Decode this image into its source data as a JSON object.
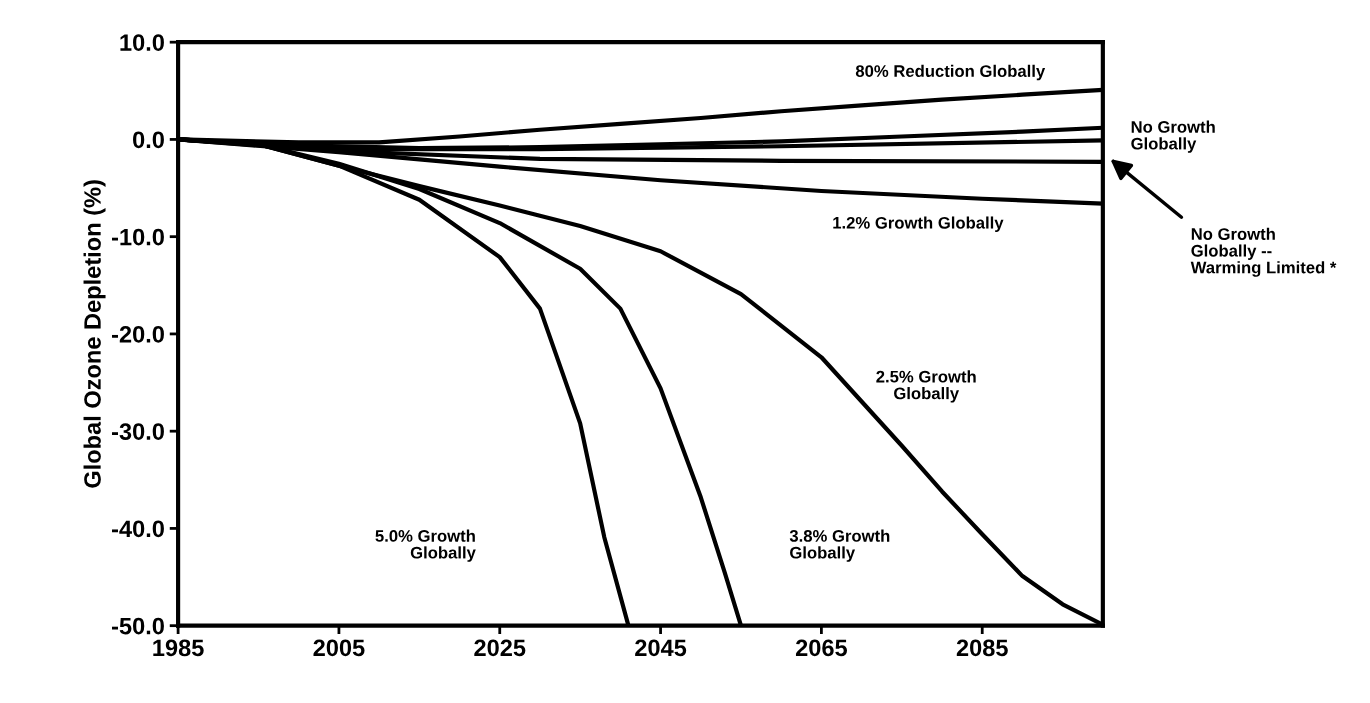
{
  "chart_data": {
    "type": "line",
    "ylabel": "Global Ozone Depletion (%)",
    "xlim": [
      1985,
      2100
    ],
    "xticks": [
      1985,
      2005,
      2025,
      2045,
      2065,
      2085
    ],
    "ylim": [
      -50,
      10
    ],
    "yticks": [
      {
        "value": 10,
        "label": "10.0"
      },
      {
        "value": 0,
        "label": "0.0"
      },
      {
        "value": -10,
        "label": "-10.0"
      },
      {
        "value": -20,
        "label": "-20.0"
      },
      {
        "value": -30,
        "label": "-30.0"
      },
      {
        "value": -40,
        "label": "-40.0"
      },
      {
        "value": -50,
        "label": "-50.0"
      }
    ],
    "grid": false,
    "legend": false,
    "marker": "none",
    "line_style": "solid",
    "series": [
      {
        "color": "#000000",
        "x": [
          1985,
          2000,
          2010,
          2020,
          2030,
          2040,
          2050,
          2060,
          2070,
          2080,
          2090,
          2100
        ],
        "values": [
          0,
          -0.3,
          -0.3,
          0.3,
          1.0,
          1.6,
          2.2,
          2.9,
          3.5,
          4.1,
          4.6,
          5.1
        ]
      },
      {
        "color": "#000000",
        "x": [
          1985,
          2000,
          2015,
          2030,
          2045,
          2060,
          2075,
          2090,
          2100
        ],
        "values": [
          0,
          -0.6,
          -0.9,
          -0.8,
          -0.5,
          -0.2,
          0.3,
          0.8,
          1.2
        ]
      },
      {
        "color": "#000000",
        "x": [
          1985,
          2005,
          2030,
          2060,
          2100
        ],
        "values": [
          0,
          -1.0,
          -1.0,
          -0.7,
          -0.1
        ]
      },
      {
        "color": "#000000",
        "x": [
          1985,
          2005,
          2030,
          2060,
          2100
        ],
        "values": [
          0,
          -1.2,
          -2.0,
          -2.2,
          -2.3
        ]
      },
      {
        "color": "#000000",
        "x": [
          1985,
          2005,
          2025,
          2045,
          2065,
          2085,
          2100
        ],
        "values": [
          0,
          -1.3,
          -2.8,
          -4.2,
          -5.3,
          -6.1,
          -6.6
        ]
      },
      {
        "color": "#000000",
        "x": [
          1985,
          1995,
          2005,
          2015,
          2025,
          2035,
          2045,
          2055,
          2065,
          2075,
          2080,
          2085,
          2090,
          2095,
          2100
        ],
        "values": [
          0,
          -0.5,
          -2.7,
          -4.8,
          -6.8,
          -8.9,
          -11.5,
          -15.9,
          -22.4,
          -31.5,
          -36.2,
          -40.6,
          -44.9,
          -47.8,
          -49.9
        ]
      },
      {
        "color": "#000000",
        "x": [
          1985,
          1995,
          2005,
          2015,
          2025,
          2035,
          2040,
          2045,
          2050,
          2053,
          2055
        ],
        "values": [
          0,
          -0.5,
          -2.5,
          -5.1,
          -8.6,
          -13.3,
          -17.4,
          -25.6,
          -36.8,
          -44.6,
          -50
        ]
      },
      {
        "color": "#000000",
        "x": [
          1985,
          1995,
          2005,
          2015,
          2025,
          2030,
          2035,
          2038,
          2041
        ],
        "values": [
          0,
          -0.5,
          -2.7,
          -6.2,
          -12.1,
          -17.4,
          -29.2,
          -40.9,
          -50
        ]
      }
    ],
    "annotations": [
      "80% Reduction Globally",
      "No Growth\nGlobally",
      "1.2% Growth Globally",
      "2.5% Growth\nGlobally",
      "5.0% Growth\nGlobally",
      "3.8% Growth\nGlobally",
      "No Growth\nGlobally --\nWarming Limited *"
    ]
  }
}
